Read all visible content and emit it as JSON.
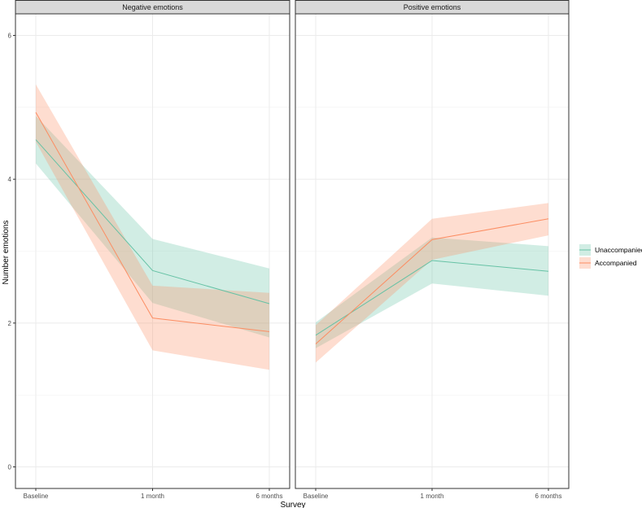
{
  "chart_data": {
    "type": "line",
    "xlabel": "Survey",
    "ylabel": "Number emotions",
    "ylim": [
      -0.3,
      6.3
    ],
    "yticks": [
      0,
      2,
      4,
      6
    ],
    "categories": [
      "Baseline",
      "1 month",
      "6 months"
    ],
    "grid": true,
    "legend_position": "right",
    "colors": {
      "Unaccompanied": "#66c2a5",
      "Accompanied": "#fc8d62"
    },
    "panels": [
      {
        "title": "Negative emotions",
        "series": [
          {
            "name": "Unaccompanied",
            "values": [
              4.55,
              2.73,
              2.27
            ],
            "lower": [
              4.22,
              2.28,
              1.8
            ],
            "upper": [
              4.88,
              3.17,
              2.76
            ]
          },
          {
            "name": "Accompanied",
            "values": [
              4.93,
              2.07,
              1.88
            ],
            "lower": [
              4.52,
              1.62,
              1.35
            ],
            "upper": [
              5.32,
              2.52,
              2.42
            ]
          }
        ]
      },
      {
        "title": "Positive emotions",
        "series": [
          {
            "name": "Unaccompanied",
            "values": [
              1.83,
              2.87,
              2.72
            ],
            "lower": [
              1.65,
              2.55,
              2.38
            ],
            "upper": [
              2.01,
              3.19,
              3.07
            ]
          },
          {
            "name": "Accompanied",
            "values": [
              1.71,
              3.16,
              3.45
            ],
            "lower": [
              1.45,
              2.88,
              3.22
            ],
            "upper": [
              1.97,
              3.45,
              3.67
            ]
          }
        ]
      }
    ]
  }
}
